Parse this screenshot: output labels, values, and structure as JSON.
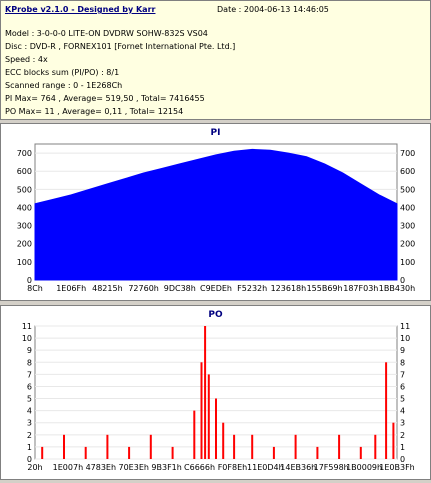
{
  "header": {
    "title": "KProbe v2.1.0 - Designed by Karr",
    "date": "Date : 2004-06-13 14:46:05"
  },
  "info": {
    "model": "Model : 3-0-0-0 LITE-ON DVDRW SOHW-832S  VS04",
    "disc": "Disc : DVD-R , FORNEX101 [Fornet International Pte. Ltd.]",
    "speed": "Speed : 4x",
    "ecc": "ECC blocks sum (PI/PO) : 8/1",
    "range": "Scanned range : 0 - 1E268Ch",
    "pi_stats": "PI Max= 764 , Average= 519,50 , Total= 7416455",
    "po_stats": "PO Max= 11 , Average= 0,11 , Total= 12154"
  },
  "chart_data": [
    {
      "type": "area",
      "title": "PI",
      "ylim": [
        0,
        750
      ],
      "yticks": [
        0,
        100,
        200,
        300,
        400,
        500,
        600,
        700
      ],
      "xticks": [
        "8Ch",
        "1E06Fh",
        "48215h",
        "72760h",
        "9DC38h",
        "C9EDEh",
        "F5232h",
        "123618h",
        "155B69h",
        "187F03h",
        "1BB430h"
      ],
      "x": [
        0.0,
        0.05,
        0.1,
        0.15,
        0.2,
        0.25,
        0.3,
        0.35,
        0.4,
        0.45,
        0.5,
        0.55,
        0.6,
        0.65,
        0.7,
        0.75,
        0.8,
        0.85,
        0.9,
        0.95,
        1.0
      ],
      "values": [
        420,
        445,
        470,
        500,
        530,
        560,
        590,
        615,
        640,
        665,
        690,
        710,
        720,
        715,
        700,
        680,
        640,
        590,
        530,
        470,
        420
      ],
      "color": "#0000ff"
    },
    {
      "type": "bar",
      "title": "PO",
      "ylim": [
        0,
        11
      ],
      "yticks": [
        0,
        1,
        2,
        3,
        4,
        5,
        6,
        7,
        8,
        9,
        10,
        11
      ],
      "xticks": [
        "20h",
        "1E007h",
        "4783Eh",
        "70E3Eh",
        "9B3F1h",
        "C6666h",
        "F0F8Eh",
        "11E0D4h",
        "14EB36h",
        "17F598h",
        "1B0009h",
        "1E0B3Fh"
      ],
      "x": [
        0.02,
        0.08,
        0.14,
        0.2,
        0.26,
        0.32,
        0.38,
        0.44,
        0.46,
        0.47,
        0.48,
        0.5,
        0.52,
        0.55,
        0.6,
        0.66,
        0.72,
        0.78,
        0.84,
        0.9,
        0.94,
        0.97,
        0.99
      ],
      "values": [
        1,
        2,
        1,
        2,
        1,
        2,
        1,
        4,
        8,
        11,
        7,
        5,
        3,
        2,
        2,
        1,
        2,
        1,
        2,
        1,
        2,
        8,
        3
      ],
      "color": "#ff0000"
    }
  ]
}
